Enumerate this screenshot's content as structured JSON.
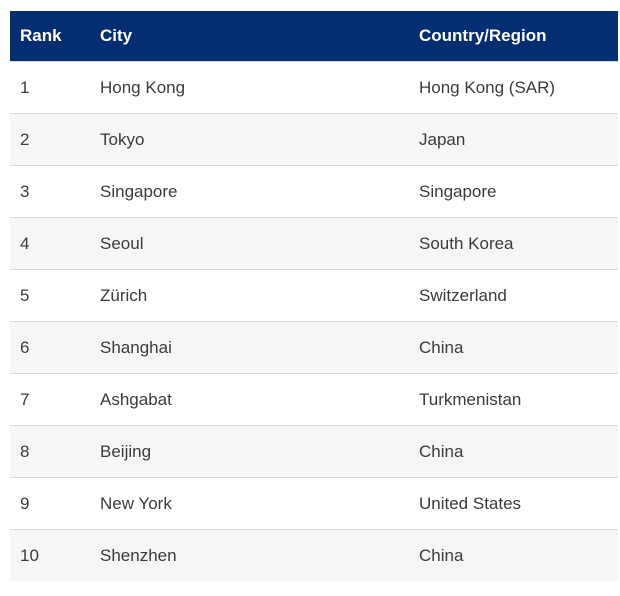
{
  "chart_data": {
    "type": "table",
    "columns": [
      {
        "key": "rank",
        "label": "Rank"
      },
      {
        "key": "city",
        "label": "City"
      },
      {
        "key": "country",
        "label": "Country/Region"
      }
    ],
    "rows": [
      {
        "rank": "1",
        "city": "Hong Kong",
        "country": "Hong Kong (SAR)"
      },
      {
        "rank": "2",
        "city": "Tokyo",
        "country": "Japan"
      },
      {
        "rank": "3",
        "city": "Singapore",
        "country": "Singapore"
      },
      {
        "rank": "4",
        "city": "Seoul",
        "country": "South Korea"
      },
      {
        "rank": "5",
        "city": "Zürich",
        "country": "Switzerland"
      },
      {
        "rank": "6",
        "city": "Shanghai",
        "country": "China"
      },
      {
        "rank": "7",
        "city": "Ashgabat",
        "country": "Turkmenistan"
      },
      {
        "rank": "8",
        "city": "Beijing",
        "country": "China"
      },
      {
        "rank": "9",
        "city": "New York",
        "country": "United States"
      },
      {
        "rank": "10",
        "city": "Shenzhen",
        "country": "China"
      }
    ],
    "layout": {
      "header_position": "top",
      "row_striping": "even-rows-shaded",
      "gridlines": "horizontal-only"
    }
  },
  "colors": {
    "header_background": "#042d72",
    "header_text": "#ffffff",
    "row_background": "#ffffff",
    "row_alt_background": "#f6f6f6",
    "divider": "#d9d9d9",
    "body_text": "#3b3b3b"
  }
}
